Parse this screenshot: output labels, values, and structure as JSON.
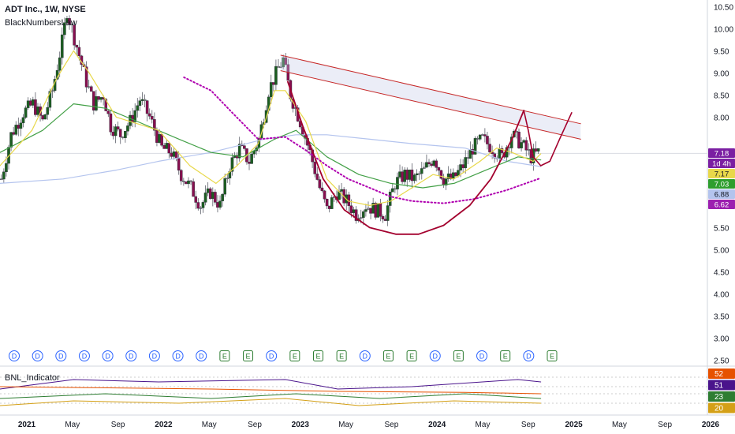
{
  "header": {
    "symbol_title": "ADT Inc., 1W, NYSE",
    "indicator_name": "BlackNumbersLaw"
  },
  "lower_pane": {
    "title": "BNL_Indicator",
    "badges": [
      {
        "text": "52",
        "color": "#e65100"
      },
      {
        "text": "51",
        "color": "#4a148c"
      },
      {
        "text": "23",
        "color": "#2e7d32"
      },
      {
        "text": "20",
        "color": "#d4a017"
      }
    ]
  },
  "price_badges": [
    {
      "text": "7.18",
      "value": 7.18,
      "color": "#7b1fa2",
      "fg": "#ffffff"
    },
    {
      "text": "1d 4h",
      "value": 7.18,
      "color": "#7b1fa2",
      "fg": "#ffffff"
    },
    {
      "text": "7.17",
      "value": 7.17,
      "color": "#e8d84a",
      "fg": "#131722"
    },
    {
      "text": "7.03",
      "value": 7.03,
      "color": "#2e9e2e",
      "fg": "#ffffff"
    },
    {
      "text": "6.88",
      "value": 6.88,
      "color": "#b4c4ee",
      "fg": "#131722"
    },
    {
      "text": "6.62",
      "value": 6.62,
      "color": "#9c1fb0",
      "fg": "#ffffff"
    }
  ],
  "event_markers": [
    "D",
    "D",
    "D",
    "D",
    "D",
    "D",
    "D",
    "D",
    "D",
    "E",
    "E",
    "D",
    "E",
    "E",
    "E",
    "D",
    "E",
    "E",
    "D",
    "E",
    "D",
    "E",
    "D",
    "E"
  ],
  "colors": {
    "up": "#1b5e20",
    "down": "#880e4f",
    "neutral": "#9e9e9e",
    "ma_fast": "#e8d84a",
    "ma_mid": "#43a047",
    "ma_slow": "#b4c4ee",
    "cup": "#a3002e",
    "dotted": "#b000b0",
    "channel": "#c62828"
  },
  "chart_data": {
    "type": "candlestick",
    "y_axis_ticks": [
      "10.50",
      "10.00",
      "9.50",
      "9.00",
      "8.50",
      "8.00",
      "7.18",
      "5.50",
      "5.00",
      "4.50",
      "4.00",
      "3.50",
      "3.00",
      "2.50"
    ],
    "y_axis_range": [
      2.4,
      10.65
    ],
    "y_axis_gridline": 7.18,
    "x_axis_ticks": [
      "2021",
      "May",
      "Sep",
      "2022",
      "May",
      "Sep",
      "2023",
      "May",
      "Sep",
      "2024",
      "May",
      "Sep",
      "2025",
      "May",
      "Sep",
      "2026"
    ],
    "x_axis_range": [
      "2020-10-01",
      "2026-05-01"
    ],
    "series": [
      {
        "name": "price",
        "values": [
          [
            "2020-10-05",
            6.6
          ],
          [
            "2020-11-02",
            7.6
          ],
          [
            "2020-12-07",
            8.1
          ],
          [
            "2021-01-04",
            8.3
          ],
          [
            "2021-02-01",
            7.9
          ],
          [
            "2021-03-01",
            8.6
          ],
          [
            "2021-03-29",
            9.7
          ],
          [
            "2021-04-12",
            10.4
          ],
          [
            "2021-04-26",
            10.0
          ],
          [
            "2021-05-17",
            9.4
          ],
          [
            "2021-06-07",
            8.8
          ],
          [
            "2021-06-28",
            8.3
          ],
          [
            "2021-07-26",
            8.5
          ],
          [
            "2021-08-16",
            7.8
          ],
          [
            "2021-09-13",
            7.6
          ],
          [
            "2021-10-11",
            7.9
          ],
          [
            "2021-11-08",
            8.4
          ],
          [
            "2021-12-06",
            8.0
          ],
          [
            "2022-01-10",
            7.3
          ],
          [
            "2022-02-07",
            7.2
          ],
          [
            "2022-03-07",
            6.7
          ],
          [
            "2022-04-04",
            6.4
          ],
          [
            "2022-05-02",
            6.0
          ],
          [
            "2022-05-30",
            6.3
          ],
          [
            "2022-06-27",
            6.0
          ],
          [
            "2022-07-25",
            6.9
          ],
          [
            "2022-08-22",
            7.3
          ],
          [
            "2022-09-19",
            7.0
          ],
          [
            "2022-10-17",
            7.5
          ],
          [
            "2022-11-14",
            8.6
          ],
          [
            "2022-12-12",
            9.1
          ],
          [
            "2022-12-26",
            9.3
          ],
          [
            "2023-01-16",
            8.5
          ],
          [
            "2023-02-13",
            7.9
          ],
          [
            "2023-03-13",
            7.2
          ],
          [
            "2023-04-10",
            6.4
          ],
          [
            "2023-05-01",
            5.9
          ],
          [
            "2023-05-29",
            6.3
          ],
          [
            "2023-06-26",
            6.1
          ],
          [
            "2023-07-24",
            5.8
          ],
          [
            "2023-08-21",
            6.0
          ],
          [
            "2023-09-18",
            5.9
          ],
          [
            "2023-10-16",
            5.8
          ],
          [
            "2023-11-13",
            6.5
          ],
          [
            "2023-12-11",
            6.7
          ],
          [
            "2024-01-08",
            6.6
          ],
          [
            "2024-02-05",
            6.8
          ],
          [
            "2024-03-04",
            7.1
          ],
          [
            "2024-04-01",
            6.6
          ],
          [
            "2024-04-29",
            6.6
          ],
          [
            "2024-05-27",
            6.9
          ],
          [
            "2024-06-24",
            7.3
          ],
          [
            "2024-07-22",
            7.5
          ],
          [
            "2024-08-19",
            7.3
          ],
          [
            "2024-09-16",
            7.1
          ],
          [
            "2024-10-14",
            7.6
          ],
          [
            "2024-11-11",
            7.4
          ],
          [
            "2024-12-09",
            7.1
          ],
          [
            "2024-12-30",
            7.2
          ]
        ]
      },
      {
        "name": "ma_fast",
        "values": [
          [
            "2020-10-01",
            6.9
          ],
          [
            "2021-01-01",
            7.7
          ],
          [
            "2021-03-15",
            8.9
          ],
          [
            "2021-05-01",
            9.5
          ],
          [
            "2021-06-15",
            9.0
          ],
          [
            "2021-09-01",
            8.0
          ],
          [
            "2022-01-01",
            7.7
          ],
          [
            "2022-04-01",
            6.9
          ],
          [
            "2022-06-15",
            6.5
          ],
          [
            "2022-08-15",
            6.9
          ],
          [
            "2022-10-15",
            7.4
          ],
          [
            "2022-12-01",
            8.6
          ],
          [
            "2023-01-01",
            8.6
          ],
          [
            "2023-03-01",
            7.9
          ],
          [
            "2023-05-01",
            6.6
          ],
          [
            "2023-07-01",
            6.1
          ],
          [
            "2023-09-01",
            6.0
          ],
          [
            "2023-11-01",
            6.1
          ],
          [
            "2024-01-01",
            6.4
          ],
          [
            "2024-03-01",
            6.7
          ],
          [
            "2024-05-01",
            6.6
          ],
          [
            "2024-07-15",
            7.0
          ],
          [
            "2024-09-01",
            7.3
          ],
          [
            "2024-10-15",
            7.2
          ],
          [
            "2024-12-15",
            7.0
          ],
          [
            "2025-01-06",
            7.17
          ]
        ]
      },
      {
        "name": "ma_mid",
        "values": [
          [
            "2020-10-01",
            7.2
          ],
          [
            "2021-02-01",
            7.7
          ],
          [
            "2021-05-01",
            8.3
          ],
          [
            "2021-08-01",
            8.2
          ],
          [
            "2021-11-01",
            7.9
          ],
          [
            "2022-03-01",
            7.5
          ],
          [
            "2022-06-01",
            7.2
          ],
          [
            "2022-09-01",
            7.1
          ],
          [
            "2022-12-01",
            7.5
          ],
          [
            "2023-02-01",
            7.7
          ],
          [
            "2023-05-01",
            7.1
          ],
          [
            "2023-08-01",
            6.7
          ],
          [
            "2023-11-01",
            6.5
          ],
          [
            "2024-02-01",
            6.4
          ],
          [
            "2024-05-01",
            6.5
          ],
          [
            "2024-08-01",
            6.8
          ],
          [
            "2024-11-01",
            7.1
          ],
          [
            "2025-01-06",
            7.03
          ]
        ]
      },
      {
        "name": "ma_slow",
        "values": [
          [
            "2020-10-01",
            6.5
          ],
          [
            "2021-04-01",
            6.6
          ],
          [
            "2021-09-01",
            6.8
          ],
          [
            "2022-01-01",
            7.0
          ],
          [
            "2022-06-01",
            7.2
          ],
          [
            "2022-11-01",
            7.5
          ],
          [
            "2023-02-01",
            7.6
          ],
          [
            "2023-05-01",
            7.6
          ],
          [
            "2023-09-01",
            7.5
          ],
          [
            "2024-01-01",
            7.4
          ],
          [
            "2024-06-01",
            7.3
          ],
          [
            "2024-10-01",
            7.0
          ],
          [
            "2025-01-06",
            6.88
          ]
        ]
      },
      {
        "name": "dotted",
        "values": [
          [
            "2022-03-15",
            8.9
          ],
          [
            "2022-06-01",
            8.6
          ],
          [
            "2022-08-01",
            8.1
          ],
          [
            "2022-10-15",
            7.5
          ],
          [
            "2023-01-01",
            7.55
          ],
          [
            "2023-03-01",
            7.25
          ],
          [
            "2023-05-01",
            6.9
          ],
          [
            "2023-07-01",
            6.6
          ],
          [
            "2023-09-01",
            6.4
          ],
          [
            "2023-11-01",
            6.2
          ],
          [
            "2024-01-01",
            6.1
          ],
          [
            "2024-04-01",
            6.05
          ],
          [
            "2024-07-01",
            6.15
          ],
          [
            "2024-10-01",
            6.35
          ],
          [
            "2025-01-06",
            6.62
          ]
        ]
      },
      {
        "name": "cup",
        "values": [
          [
            "2023-01-08",
            8.8
          ],
          [
            "2023-02-20",
            7.8
          ],
          [
            "2023-04-20",
            6.6
          ],
          [
            "2023-06-20",
            5.9
          ],
          [
            "2023-09-01",
            5.5
          ],
          [
            "2023-11-15",
            5.35
          ],
          [
            "2024-01-20",
            5.35
          ],
          [
            "2024-04-01",
            5.55
          ],
          [
            "2024-06-15",
            6.0
          ],
          [
            "2024-08-15",
            6.6
          ],
          [
            "2024-10-15",
            7.5
          ],
          [
            "2024-11-18",
            8.15
          ]
        ]
      },
      {
        "name": "handle",
        "values": [
          [
            "2024-11-18",
            8.15
          ],
          [
            "2024-12-01",
            7.7
          ],
          [
            "2024-12-15",
            7.1
          ],
          [
            "2025-01-06",
            6.9
          ],
          [
            "2025-02-01",
            7.0
          ],
          [
            "2025-03-01",
            7.5
          ],
          [
            "2025-04-05",
            8.1
          ]
        ]
      },
      {
        "name": "channel_upper",
        "values": [
          [
            "2022-12-19",
            9.4
          ],
          [
            "2025-05-01",
            7.85
          ]
        ]
      },
      {
        "name": "channel_lower",
        "values": [
          [
            "2022-12-19",
            9.05
          ],
          [
            "2025-05-01",
            7.5
          ]
        ]
      }
    ],
    "bnl_lines": [
      {
        "name": "bnl_1",
        "values": [
          [
            "2020-10-01",
            0.55
          ],
          [
            "2021-05-01",
            0.75
          ],
          [
            "2022-01-01",
            0.7
          ],
          [
            "2023-01-01",
            0.75
          ],
          [
            "2023-06-01",
            0.55
          ],
          [
            "2024-01-01",
            0.6
          ],
          [
            "2024-11-01",
            0.75
          ],
          [
            "2025-01-06",
            0.7
          ]
        ]
      },
      {
        "name": "bnl_2",
        "values": [
          [
            "2020-10-01",
            0.35
          ],
          [
            "2021-08-01",
            0.45
          ],
          [
            "2022-06-01",
            0.35
          ],
          [
            "2023-02-01",
            0.45
          ],
          [
            "2023-10-01",
            0.35
          ],
          [
            "2024-06-01",
            0.45
          ],
          [
            "2025-01-06",
            0.35
          ]
        ]
      },
      {
        "name": "bnl_3",
        "values": [
          [
            "2020-10-01",
            0.2
          ],
          [
            "2021-05-01",
            0.3
          ],
          [
            "2022-03-01",
            0.25
          ],
          [
            "2023-01-01",
            0.35
          ],
          [
            "2023-08-01",
            0.2
          ],
          [
            "2024-05-01",
            0.3
          ],
          [
            "2025-01-06",
            0.25
          ]
        ]
      },
      {
        "name": "bnl_4",
        "values": [
          [
            "2020-10-01",
            0.6
          ],
          [
            "2021-06-01",
            0.58
          ],
          [
            "2022-06-01",
            0.55
          ],
          [
            "2023-06-01",
            0.5
          ],
          [
            "2024-06-01",
            0.48
          ],
          [
            "2025-01-06",
            0.45
          ]
        ]
      }
    ]
  }
}
